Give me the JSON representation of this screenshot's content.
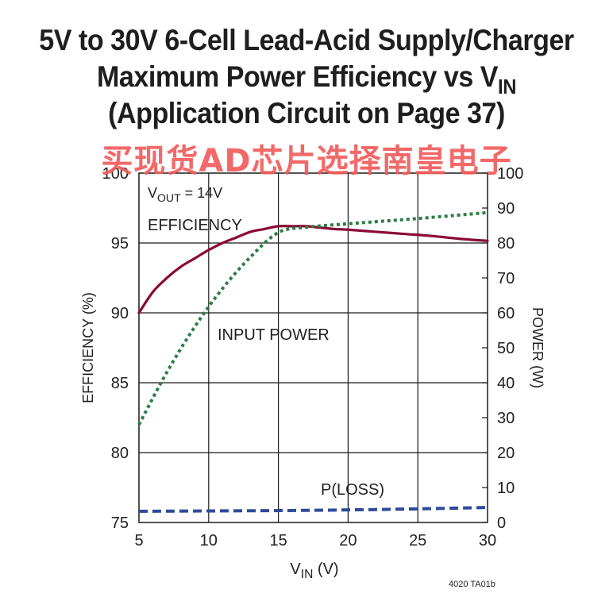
{
  "title": {
    "line1": "5V to 30V 6-Cell Lead-Acid Supply/Charger",
    "line2_main": "Maximum Power Efficiency vs V",
    "line2_sub": "IN",
    "line3": "(Application Circuit on Page 37)"
  },
  "watermark": "买现货AD芯片选择南皇电子",
  "figure_code": "4020 TA01b",
  "colors": {
    "efficiency": "#8b0a35",
    "input_power": "#2e7d45",
    "power_loss": "#2e4a9a",
    "grid": "#1a1a1a"
  },
  "chart_data": {
    "type": "line",
    "xlabel_main": "V",
    "xlabel_sub": "IN",
    "xlabel_unit": "(V)",
    "ylabel_left": "EFFICIENCY (%)",
    "ylabel_right": "POWER (W)",
    "xlim": [
      5,
      30
    ],
    "ylim_left": [
      75,
      100
    ],
    "ylim_right": [
      0,
      100
    ],
    "x_ticks": [
      5,
      10,
      15,
      20,
      25,
      30
    ],
    "y_left_ticks": [
      75,
      80,
      85,
      90,
      95,
      100
    ],
    "y_right_ticks": [
      0,
      10,
      20,
      30,
      40,
      50,
      60,
      70,
      80,
      90,
      100
    ],
    "grid": true,
    "annotation": {
      "vout_main": "V",
      "vout_sub": "OUT",
      "vout_rest": " = 14V"
    },
    "series": [
      {
        "name": "EFFICIENCY",
        "axis": "left",
        "style": "solid",
        "x": [
          5,
          6,
          7,
          8,
          9,
          10,
          11,
          12,
          13,
          14,
          15,
          16,
          17,
          18,
          19,
          20,
          22,
          24,
          26,
          28,
          30
        ],
        "y": [
          90.0,
          91.5,
          92.5,
          93.3,
          93.9,
          94.5,
          95.0,
          95.4,
          95.8,
          96.0,
          96.2,
          96.2,
          96.2,
          96.1,
          96.0,
          95.95,
          95.8,
          95.65,
          95.5,
          95.3,
          95.15
        ]
      },
      {
        "name": "INPUT POWER",
        "axis": "right",
        "style": "dotted",
        "x": [
          5,
          7,
          9,
          11,
          13,
          15,
          17,
          20,
          25,
          30
        ],
        "y": [
          28,
          43,
          56,
          67,
          76,
          83,
          84.5,
          85.5,
          87,
          88.7
        ]
      },
      {
        "name": "P(LOSS)",
        "axis": "right",
        "style": "dashed",
        "x": [
          5,
          10,
          15,
          20,
          25,
          30
        ],
        "y": [
          3.2,
          3.3,
          3.4,
          3.6,
          3.9,
          4.3
        ]
      }
    ]
  }
}
